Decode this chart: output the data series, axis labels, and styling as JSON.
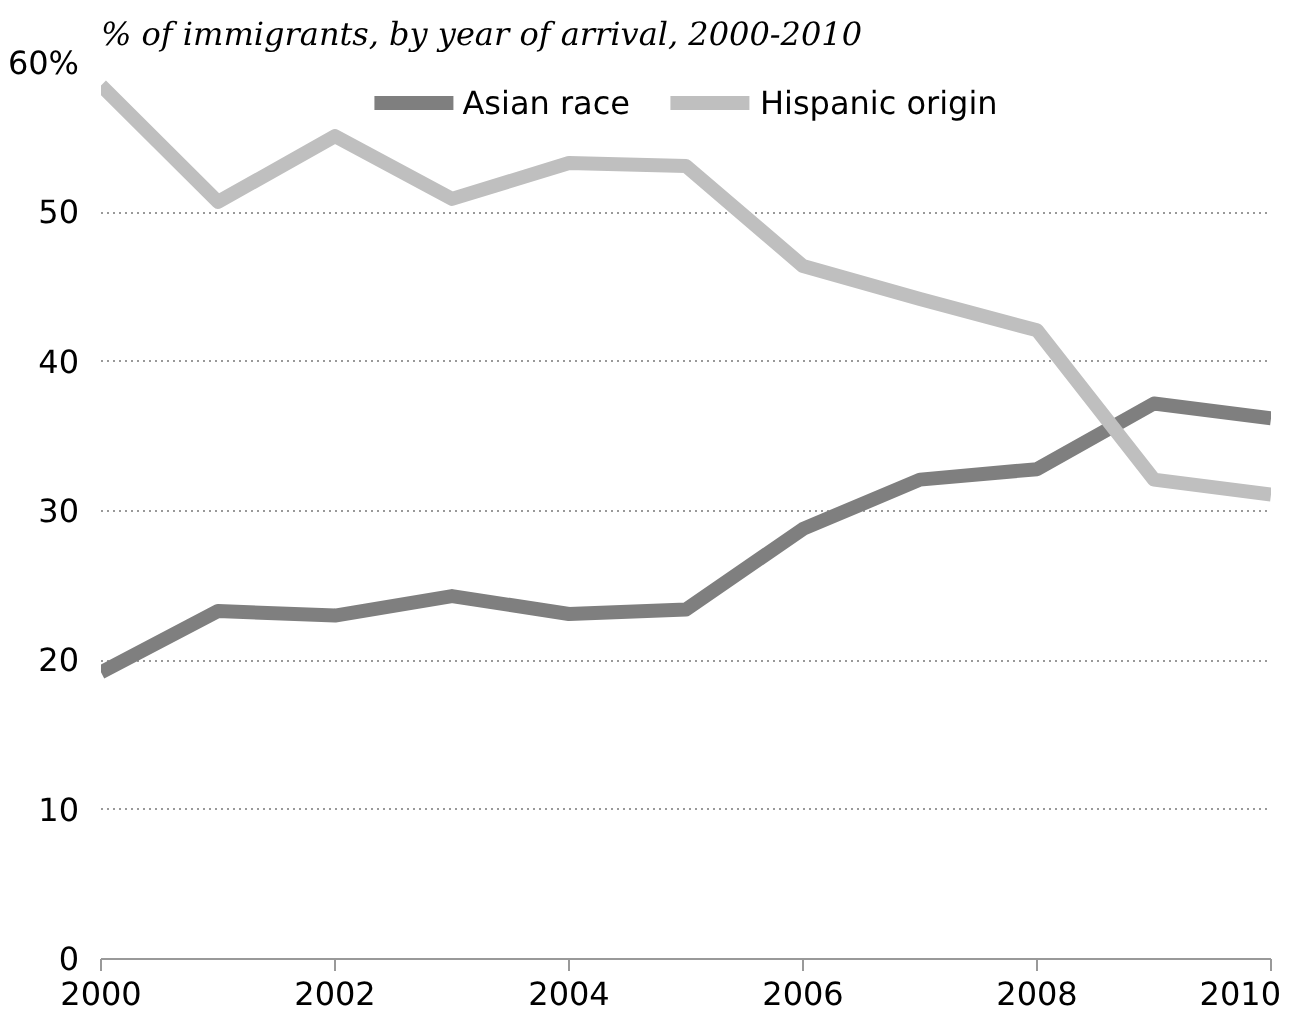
{
  "chart_data": {
    "type": "line",
    "title": "% of immigrants, by year of arrival, 2000-2010",
    "x": [
      2000,
      2001,
      2002,
      2003,
      2004,
      2005,
      2006,
      2007,
      2008,
      2009,
      2010
    ],
    "series": [
      {
        "name": "Asian race",
        "color": "#7f7f7f",
        "values": [
          19.2,
          23.3,
          23.0,
          24.3,
          23.1,
          23.4,
          28.8,
          32.1,
          32.8,
          37.2,
          36.2
        ]
      },
      {
        "name": "Hispanic origin",
        "color": "#bfbfbf",
        "values": [
          58.5,
          50.7,
          55.1,
          50.9,
          53.3,
          53.1,
          46.4,
          44.2,
          42.1,
          32.1,
          31.1
        ]
      }
    ],
    "xlim": [
      2000,
      2010
    ],
    "xticks": [
      2000,
      2002,
      2004,
      2006,
      2008,
      2010
    ],
    "ylim": [
      0,
      60
    ],
    "yticks": [
      0,
      10,
      20,
      30,
      40,
      50,
      {
        "value": 60,
        "label": "60%"
      }
    ],
    "grid": "y",
    "legend": "top",
    "marker": "none",
    "line_style": "solid"
  }
}
